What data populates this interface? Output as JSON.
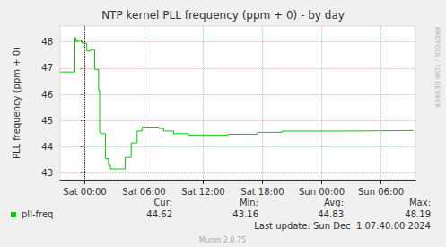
{
  "chart_data": {
    "type": "line",
    "title": "NTP kernel PLL frequency (ppm + 0) - by day",
    "y_label": "PLL frequency (ppm + 0)",
    "watermark": "RRDTOOL / TOBI OETIKER",
    "line_style": "step",
    "grid": true,
    "x": [
      -2.5,
      -1.0,
      -0.9,
      -0.7,
      -0.3,
      0.2,
      0.6,
      1.0,
      1.4,
      1.5,
      1.6,
      2.1,
      2.4,
      2.6,
      4.1,
      4.7,
      5.3,
      5.8,
      7.5,
      8.0,
      9.0,
      10.5,
      14.5,
      17.5,
      20.0,
      27.0,
      33.3
    ],
    "series": [
      {
        "name": "pll-freq",
        "color": "#00cc00",
        "values": [
          46.85,
          48.15,
          48.0,
          48.05,
          47.95,
          47.65,
          47.7,
          46.95,
          46.15,
          44.55,
          44.5,
          43.55,
          43.3,
          43.16,
          43.6,
          44.15,
          44.6,
          44.75,
          44.7,
          44.6,
          44.5,
          44.45,
          44.48,
          44.55,
          44.6,
          44.62,
          44.62
        ]
      }
    ],
    "xlim": [
      -2.5,
      33.5
    ],
    "xticks": [
      {
        "value": 0,
        "label": "Sat 00:00"
      },
      {
        "value": 6,
        "label": "Sat 06:00"
      },
      {
        "value": 12,
        "label": "Sat 12:00"
      },
      {
        "value": 18,
        "label": "Sat 18:00"
      },
      {
        "value": 24,
        "label": "Sun 00:00"
      },
      {
        "value": 30,
        "label": "Sun 06:00"
      }
    ],
    "ylim": [
      42.75,
      48.6
    ],
    "yticks": [
      43,
      44,
      45,
      46,
      47,
      48
    ],
    "summary": {
      "headers": [
        "Cur:",
        "Min:",
        "Avg:",
        "Max:"
      ],
      "values": [
        44.62,
        43.16,
        44.83,
        48.19
      ]
    },
    "footer": "Last update: Sun Dec  1 07:40:00 2024",
    "credit": "Munin 2.0.75"
  }
}
